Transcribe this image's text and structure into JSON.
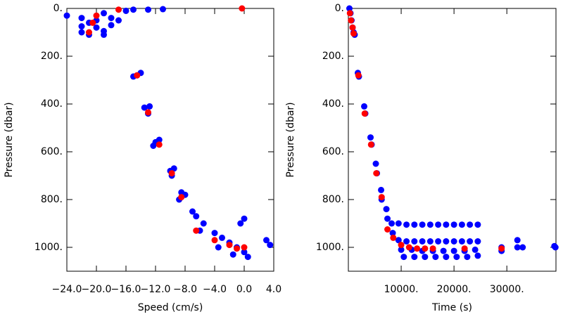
{
  "chart_data": [
    {
      "type": "scatter",
      "x_label": "Speed (cm/s)",
      "y_label": "Pressure (dbar)",
      "y_inverted": true,
      "xlim": [
        -24,
        4
      ],
      "ylim": [
        0,
        1100
      ],
      "xticks": [
        {
          "value": -24,
          "label": "−24.0"
        },
        {
          "value": -20,
          "label": "−20.0"
        },
        {
          "value": -16,
          "label": "−16.0"
        },
        {
          "value": -12,
          "label": "−12.0"
        },
        {
          "value": -8,
          "label": "−8.0"
        },
        {
          "value": -4,
          "label": "−4.0"
        },
        {
          "value": 0,
          "label": "0.0"
        },
        {
          "value": 4,
          "label": "4.0"
        }
      ],
      "yticks": [
        {
          "value": 0,
          "label": "0."
        },
        {
          "value": 200,
          "label": "200."
        },
        {
          "value": 400,
          "label": "400."
        },
        {
          "value": 600,
          "label": "600."
        },
        {
          "value": 800,
          "label": "800."
        },
        {
          "value": 1000,
          "label": "1000."
        }
      ],
      "series": [
        {
          "color": "#0000ff",
          "x": [
            -24,
            -22,
            -21,
            -20,
            -22,
            -19,
            -18,
            -17,
            -21,
            -20,
            -22,
            -19,
            -18,
            -15,
            -13,
            -11,
            -16,
            -19,
            -14.5,
            -14,
            -15,
            -13.5,
            -12.8,
            -13,
            -12,
            -11.5,
            -12.3,
            -10,
            -9.5,
            -9.8,
            -8.5,
            -8,
            -8.8,
            -7,
            -6.5,
            -5.5,
            -6,
            -4,
            -3,
            -2,
            -1,
            0,
            0.5,
            -1.5,
            -3.5,
            -0.5,
            0,
            3,
            3.5
          ],
          "values": [
            30,
            40,
            60,
            80,
            100,
            110,
            70,
            50,
            110,
            50,
            75,
            95,
            40,
            5,
            5,
            3,
            10,
            20,
            280,
            270,
            285,
            415,
            410,
            440,
            560,
            550,
            575,
            680,
            670,
            700,
            770,
            780,
            800,
            850,
            870,
            900,
            930,
            940,
            960,
            980,
            1000,
            1020,
            1040,
            1030,
            1000,
            900,
            880,
            970,
            990
          ]
        },
        {
          "color": "#ff0000",
          "x": [
            -0.3,
            -17,
            -20,
            -20.5,
            -21,
            -14.5,
            -13,
            -11.5,
            -9.8,
            -8.5,
            -6.5,
            -4,
            -2,
            -1,
            0
          ],
          "values": [
            0,
            5,
            30,
            60,
            100,
            280,
            435,
            570,
            690,
            790,
            930,
            970,
            990,
            1005,
            1000
          ]
        }
      ]
    },
    {
      "type": "scatter",
      "x_label": "Time (s)",
      "y_label": "Pressure (dbar)",
      "y_inverted": true,
      "xlim": [
        0,
        39300
      ],
      "ylim": [
        0,
        1100
      ],
      "xticks": [
        {
          "value": 10000,
          "label": "10000."
        },
        {
          "value": 20000,
          "label": "20000."
        },
        {
          "value": 30000,
          "label": "30000."
        }
      ],
      "yticks": [
        {
          "value": 0,
          "label": "0."
        },
        {
          "value": 200,
          "label": "200."
        },
        {
          "value": 400,
          "label": "400."
        },
        {
          "value": 600,
          "label": "600."
        },
        {
          "value": 800,
          "label": "800."
        },
        {
          "value": 1000,
          "label": "1000."
        }
      ],
      "series": [
        {
          "color": "#0000ff",
          "x": [
            200,
            400,
            600,
            800,
            1000,
            1200,
            1800,
            2000,
            3000,
            3200,
            4200,
            4400,
            5200,
            5400,
            6200,
            6300,
            7200,
            7400,
            8200,
            8400,
            9500,
            11000,
            12500,
            14000,
            15500,
            17000,
            18500,
            20000,
            21500,
            23000,
            24500,
            9500,
            11000,
            12500,
            14000,
            15500,
            17000,
            18500,
            20000,
            21500,
            23000,
            24500,
            10000,
            12000,
            14000,
            16000,
            18000,
            20000,
            22000,
            24000,
            10500,
            12500,
            14500,
            16500,
            18500,
            20500,
            22500,
            24500,
            29000,
            29000,
            32000,
            32000,
            33000,
            39000,
            39200
          ],
          "values": [
            0,
            20,
            50,
            80,
            100,
            110,
            270,
            285,
            410,
            440,
            540,
            570,
            650,
            690,
            760,
            800,
            840,
            880,
            900,
            940,
            900,
            905,
            905,
            905,
            905,
            905,
            905,
            905,
            905,
            905,
            905,
            970,
            975,
            975,
            975,
            975,
            975,
            975,
            975,
            975,
            975,
            975,
            1010,
            1010,
            1015,
            1015,
            1015,
            1015,
            1015,
            1010,
            1040,
            1040,
            1040,
            1040,
            1040,
            1040,
            1040,
            1035,
            1000,
            1015,
            970,
            1000,
            1000,
            995,
            1000
          ]
        },
        {
          "color": "#ff0000",
          "x": [
            300,
            500,
            800,
            1000,
            1900,
            3100,
            4300,
            5300,
            6300,
            7400,
            8500,
            10000,
            11500,
            13000,
            14500,
            16000,
            22000,
            29000
          ],
          "values": [
            20,
            50,
            80,
            105,
            280,
            440,
            570,
            690,
            790,
            925,
            960,
            990,
            1000,
            1005,
            1005,
            1005,
            1005,
            1005
          ]
        }
      ]
    }
  ]
}
